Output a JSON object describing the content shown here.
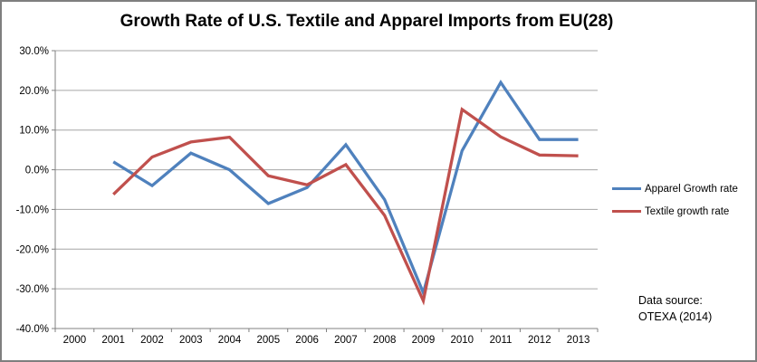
{
  "chart_data": {
    "type": "line",
    "title": "Growth Rate of U.S. Textile and Apparel Imports from EU(28)",
    "x": [
      2000,
      2001,
      2002,
      2003,
      2004,
      2005,
      2006,
      2007,
      2008,
      2009,
      2010,
      2011,
      2012,
      2013
    ],
    "series": [
      {
        "name": "Apparel Growth rate",
        "color": "#4F81BD",
        "values": [
          null,
          2.0,
          -4.0,
          4.2,
          0.0,
          -8.5,
          -4.5,
          6.3,
          -7.5,
          -31.0,
          4.8,
          22.0,
          7.6,
          7.6
        ]
      },
      {
        "name": "Textile growth rate",
        "color": "#C0504D",
        "values": [
          null,
          -6.2,
          3.2,
          7.0,
          8.2,
          -1.5,
          -3.8,
          1.3,
          -11.5,
          -33.0,
          15.2,
          8.3,
          3.7,
          3.5
        ]
      }
    ],
    "ylim": [
      -40,
      30
    ],
    "ytick_values": [
      30,
      20,
      10,
      0,
      -10,
      -20,
      -30,
      -40
    ],
    "ytick_labels": [
      "30.0%",
      "20.0%",
      "10.0%",
      "0.0%",
      "-10.0%",
      "-20.0%",
      "-30.0%",
      "-40.0%"
    ],
    "grid": true,
    "legend_position": "right"
  },
  "annotations": {
    "data_source_line1": "Data source:",
    "data_source_line2": "OTEXA (2014)"
  }
}
